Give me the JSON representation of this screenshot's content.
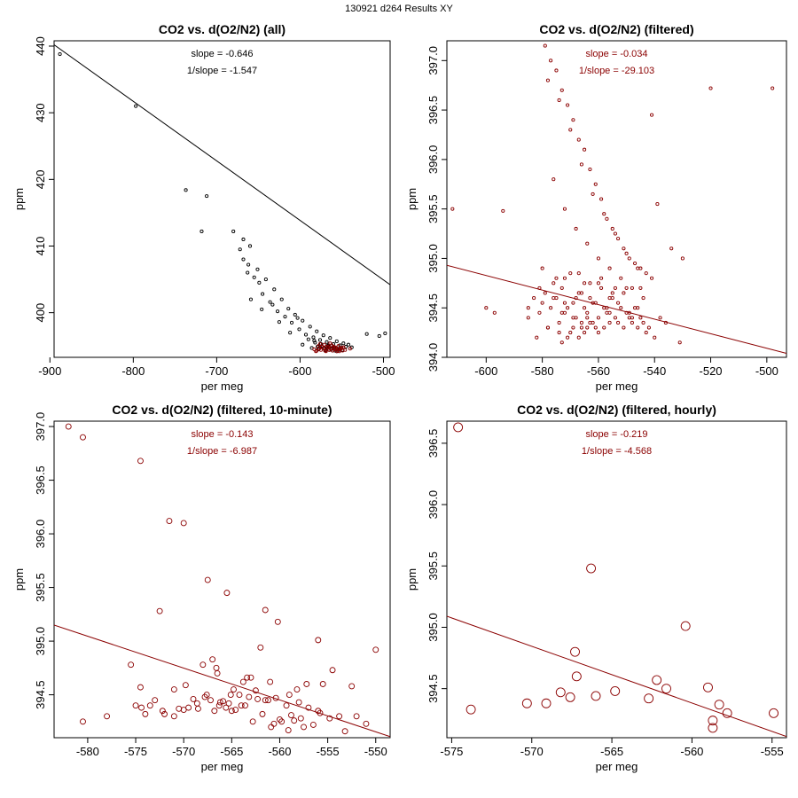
{
  "header": {
    "title": "130921   d264   Results XY"
  },
  "colors": {
    "all": "#000000",
    "filtered": "#8b0000",
    "frame": "#000000"
  },
  "chart_data": [
    {
      "type": "scatter",
      "title": "CO2 vs. d(O2/N2) (all)",
      "xlabel": "per meg",
      "ylabel": "ppm",
      "xlim": [
        -895,
        -492
      ],
      "ylim": [
        393.3,
        440.8
      ],
      "xticks": [
        -900,
        -800,
        -700,
        -600,
        -500
      ],
      "yticks": [
        400,
        410,
        420,
        430,
        440
      ],
      "color_key": "all",
      "marker_r": 1.6,
      "annotations": [
        "slope = -0.646",
        "1/slope = -1.547"
      ],
      "fit_line": {
        "slope": -0.0893,
        "x": [
          -895,
          -492
        ],
        "y": [
          440.2,
          404.2
        ]
      },
      "series": [
        {
          "name": "all",
          "x": [
            -888,
            -797,
            -737,
            -712,
            -718,
            -680,
            -672,
            -668,
            -662,
            -660,
            -655,
            -651,
            -649,
            -645,
            -641,
            -636,
            -631,
            -627,
            -622,
            -618,
            -614,
            -610,
            -606,
            -601,
            -597,
            -593,
            -588,
            -584,
            -580,
            -576,
            -572,
            -568,
            -564,
            -560,
            -556,
            -552,
            -548,
            -545,
            -542,
            -538,
            -520,
            -505,
            -498,
            -668,
            -663,
            -659,
            -646,
            -633,
            -625,
            -612,
            -603,
            -597,
            -590,
            -586,
            -582,
            -578,
            -574,
            -569,
            -565,
            -561,
            -557,
            -553,
            -583,
            -579,
            -575,
            -571,
            -567,
            -563,
            -559,
            -555,
            -551,
            -576,
            -570,
            -566,
            -562,
            -558,
            -554,
            -571,
            -565,
            -560,
            -556,
            -549
          ],
          "y": [
            438.8,
            431.0,
            418.4,
            417.5,
            412.2,
            412.2,
            409.5,
            408.0,
            407.2,
            410.0,
            405.3,
            406.5,
            404.5,
            402.8,
            405.0,
            401.6,
            403.5,
            400.2,
            402.0,
            399.4,
            400.6,
            398.5,
            399.7,
            397.5,
            398.8,
            396.7,
            397.9,
            396.3,
            397.2,
            395.9,
            396.6,
            395.6,
            396.2,
            395.3,
            395.7,
            395.1,
            395.4,
            394.9,
            395.2,
            394.8,
            396.8,
            396.5,
            396.9,
            411.0,
            406.0,
            402.0,
            400.5,
            401.2,
            398.6,
            397.0,
            399.2,
            395.2,
            396.0,
            394.7,
            395.5,
            394.5,
            395.0,
            394.4,
            394.9,
            394.3,
            394.7,
            394.4,
            395.8,
            394.9,
            395.3,
            394.6,
            395.0,
            394.5,
            394.8,
            394.4,
            394.7,
            394.8,
            394.3,
            395.1,
            394.6,
            394.3,
            394.5,
            394.7,
            394.4,
            394.6,
            394.2,
            394.4
          ]
        },
        {
          "name": "filtered",
          "color_key": "filtered",
          "x": [
            -583,
            -580,
            -577,
            -575,
            -572,
            -570,
            -568,
            -566,
            -565,
            -563,
            -561,
            -559,
            -557,
            -555,
            -553,
            -551,
            -549,
            -578,
            -574,
            -571,
            -567,
            -562,
            -558,
            -554,
            -550,
            -581,
            -569,
            -560,
            -552,
            -546,
            -540,
            -576,
            -564,
            -556,
            -548
          ],
          "y": [
            394.5,
            394.3,
            394.6,
            394.4,
            394.7,
            394.3,
            394.5,
            394.8,
            394.4,
            394.6,
            394.3,
            394.5,
            394.7,
            394.4,
            394.2,
            394.6,
            394.3,
            395.0,
            394.9,
            395.2,
            394.9,
            395.1,
            394.8,
            395.0,
            394.7,
            394.2,
            394.2,
            394.9,
            394.5,
            394.4,
            394.6,
            395.3,
            395.4,
            394.2,
            394.8
          ]
        }
      ]
    },
    {
      "type": "scatter",
      "title": "CO2 vs. d(O2/N2) (filtered)",
      "xlabel": "per meg",
      "ylabel": "ppm",
      "xlim": [
        -614,
        -493
      ],
      "ylim": [
        394.0,
        397.2
      ],
      "xticks": [
        -600,
        -580,
        -560,
        -540,
        -520,
        -500
      ],
      "yticks": [
        394.0,
        394.5,
        395.0,
        395.5,
        396.0,
        396.5,
        397.0
      ],
      "color_key": "filtered",
      "marker_r": 1.6,
      "annotations": [
        "slope = -0.034",
        "1/slope = -29.103"
      ],
      "fit_line": {
        "slope": -0.0075,
        "x": [
          -614,
          -493
        ],
        "y": [
          394.93,
          394.04
        ]
      },
      "series": [
        {
          "name": "filtered",
          "x": [
            -612,
            -594,
            -600,
            -597,
            -585,
            -580,
            -578,
            -576,
            -574,
            -573,
            -572,
            -571,
            -570,
            -569,
            -568,
            -567,
            -566,
            -565,
            -564,
            -563,
            -562,
            -561,
            -560,
            -559,
            -558,
            -557,
            -556,
            -555,
            -554,
            -553,
            -552,
            -551,
            -550,
            -549,
            -548,
            -547,
            -546,
            -545,
            -544,
            -543,
            -542,
            -540,
            -538,
            -536,
            -534,
            -531,
            -530,
            -520,
            -498,
            -579,
            -577,
            -575,
            -573,
            -571,
            -569,
            -567,
            -565,
            -563,
            -561,
            -559,
            -557,
            -555,
            -553,
            -551,
            -549,
            -547,
            -545,
            -543,
            -541,
            -578,
            -574,
            -570,
            -566,
            -562,
            -558,
            -554,
            -550,
            -546,
            -576,
            -572,
            -568,
            -564,
            -560,
            -556,
            -552,
            -548,
            -544,
            -580,
            -570,
            -560,
            -550,
            -575,
            -565,
            -555,
            -582,
            -578,
            -574,
            -573,
            -571,
            -569,
            -567,
            -565,
            -564,
            -563,
            -560,
            -585,
            -583,
            -581,
            -579,
            -577,
            -575,
            -572,
            -568,
            -566,
            -562,
            -558,
            -556,
            -553,
            -549,
            -546,
            -541,
            -539,
            -581,
            -576,
            -572,
            -567,
            -563,
            -559,
            -554,
            -551,
            -545,
            -573,
            -569,
            -564,
            -557,
            -548,
            -566,
            -561,
            -556
          ],
          "y": [
            395.5,
            395.48,
            394.5,
            394.45,
            394.4,
            394.55,
            394.3,
            394.6,
            394.35,
            394.7,
            394.45,
            394.5,
            394.25,
            394.55,
            394.4,
            394.65,
            394.3,
            394.5,
            394.45,
            394.6,
            394.35,
            394.55,
            394.4,
            394.7,
            394.3,
            394.5,
            394.45,
            394.6,
            394.4,
            394.35,
            394.5,
            394.3,
            394.45,
            394.4,
            394.35,
            394.5,
            394.3,
            394.4,
            394.35,
            394.25,
            394.3,
            394.2,
            394.4,
            394.35,
            395.1,
            394.15,
            395.0,
            396.72,
            396.72,
            397.15,
            397.0,
            396.9,
            396.7,
            396.55,
            396.4,
            396.2,
            396.1,
            395.9,
            395.75,
            395.6,
            395.4,
            395.3,
            395.2,
            395.1,
            395.0,
            394.95,
            394.9,
            394.85,
            394.8,
            396.8,
            396.6,
            396.3,
            395.95,
            395.65,
            395.45,
            395.25,
            395.05,
            394.9,
            395.8,
            395.5,
            395.3,
            395.15,
            395.0,
            394.9,
            394.8,
            394.7,
            394.6,
            394.9,
            394.85,
            394.75,
            394.7,
            394.8,
            394.75,
            394.65,
            394.2,
            394.3,
            394.25,
            394.15,
            394.2,
            394.3,
            394.2,
            394.25,
            394.3,
            394.35,
            394.25,
            394.5,
            394.6,
            394.45,
            394.65,
            394.5,
            394.6,
            394.55,
            394.6,
            394.65,
            394.55,
            394.5,
            394.6,
            394.55,
            394.45,
            394.5,
            396.45,
            395.55,
            394.7,
            394.75,
            394.8,
            394.85,
            394.75,
            394.8,
            394.7,
            394.65,
            394.7,
            394.45,
            394.4,
            394.4,
            394.45,
            394.4,
            394.35,
            394.3,
            394.35
          ]
        }
      ]
    },
    {
      "type": "scatter",
      "title": "CO2 vs. d(O2/N2) (filtered, 10-minute)",
      "xlabel": "per meg",
      "ylabel": "ppm",
      "xlim": [
        -583.5,
        -548.5
      ],
      "ylim": [
        394.1,
        397.05
      ],
      "xticks": [
        -580,
        -575,
        -570,
        -565,
        -560,
        -555,
        -550
      ],
      "yticks": [
        394.5,
        395.0,
        395.5,
        396.0,
        396.5,
        397.0
      ],
      "color_key": "filtered",
      "marker_r": 3.0,
      "annotations": [
        "slope = -0.143",
        "1/slope = -6.987"
      ],
      "fit_line": {
        "slope": -0.0298,
        "x": [
          -583.5,
          -548.5
        ],
        "y": [
          395.15,
          394.11
        ]
      },
      "series": [
        {
          "name": "10-minute",
          "x": [
            -582,
            -580.5,
            -574.5,
            -571.5,
            -570,
            -572.5,
            -567.5,
            -565.5,
            -561.5,
            -560.2,
            -556,
            -550,
            -575.5,
            -574.5,
            -571,
            -569.8,
            -568,
            -566.5,
            -563.8,
            -562.5,
            -555.5,
            -554.5,
            -552.5,
            -580.5,
            -578,
            -573.5,
            -572.2,
            -571,
            -569.5,
            -568.6,
            -567.2,
            -566.3,
            -565.6,
            -565,
            -564.2,
            -563.2,
            -562.3,
            -561.2,
            -560.4,
            -559.3,
            -558,
            -557,
            -555.8,
            -554.8,
            -553.8,
            -552,
            -551,
            -574,
            -572,
            -570,
            -568.5,
            -567.8,
            -566.8,
            -565.9,
            -565.3,
            -564.6,
            -563.6,
            -562.8,
            -561.8,
            -560.9,
            -560,
            -559.1,
            -558.5,
            -557.5,
            -556.5,
            -556,
            -574.4,
            -570.5,
            -566.2,
            -564,
            -559.8,
            -557.8,
            -569,
            -565.1,
            -563,
            -561,
            -559,
            -567,
            -562,
            -558.2,
            -575,
            -573,
            -567.6,
            -564.8,
            -563.4,
            -560.6,
            -558.8,
            -566.6,
            -561.5,
            -557.2,
            -553.2
          ],
          "y": [
            397.0,
            396.9,
            396.68,
            396.12,
            396.1,
            395.28,
            395.57,
            395.45,
            395.29,
            395.18,
            395.01,
            394.92,
            394.78,
            394.57,
            394.55,
            394.59,
            394.78,
            394.7,
            394.62,
            394.54,
            394.6,
            394.73,
            394.58,
            394.25,
            394.3,
            394.4,
            394.35,
            394.3,
            394.38,
            394.42,
            394.45,
            394.4,
            394.38,
            394.35,
            394.5,
            394.48,
            394.46,
            394.45,
            394.47,
            394.4,
            394.43,
            394.38,
            394.33,
            394.28,
            394.3,
            394.3,
            394.23,
            394.32,
            394.32,
            394.36,
            394.37,
            394.48,
            394.35,
            394.44,
            394.42,
            394.36,
            394.4,
            394.25,
            394.32,
            394.2,
            394.27,
            394.17,
            394.26,
            394.2,
            394.22,
            394.35,
            394.38,
            394.37,
            394.43,
            394.4,
            394.25,
            394.28,
            394.46,
            394.5,
            394.66,
            394.62,
            394.5,
            394.83,
            394.94,
            394.55,
            394.4,
            394.45,
            394.5,
            394.55,
            394.66,
            394.23,
            394.31,
            394.75,
            394.45,
            394.6,
            394.16
          ]
        }
      ]
    },
    {
      "type": "scatter",
      "title": "CO2 vs. d(O2/N2) (filtered, hourly)",
      "xlabel": "per meg",
      "ylabel": "ppm",
      "xlim": [
        -575.3,
        -554.1
      ],
      "ylim": [
        394.1,
        396.68
      ],
      "xticks": [
        -575,
        -570,
        -565,
        -560,
        -555
      ],
      "yticks": [
        394.5,
        395.0,
        395.5,
        396.0,
        396.5
      ],
      "color_key": "filtered",
      "marker_r": 5.0,
      "annotations": [
        "slope = -0.219",
        "1/slope = -4.568"
      ],
      "fit_line": {
        "slope": -0.0464,
        "x": [
          -575.3,
          -554.1
        ],
        "y": [
          395.09,
          394.11
        ]
      },
      "series": [
        {
          "name": "hourly",
          "x": [
            -574.6,
            -573.8,
            -570.3,
            -569.1,
            -568.2,
            -567.6,
            -567.3,
            -567.2,
            -566.3,
            -566.0,
            -564.8,
            -562.7,
            -562.2,
            -561.6,
            -560.4,
            -559.0,
            -558.7,
            -558.7,
            -558.3,
            -557.8,
            -554.9
          ],
          "y": [
            396.63,
            394.33,
            394.38,
            394.38,
            394.47,
            394.43,
            394.8,
            394.6,
            395.48,
            394.44,
            394.48,
            394.42,
            394.57,
            394.5,
            395.01,
            394.51,
            394.24,
            394.18,
            394.37,
            394.3,
            394.3
          ]
        }
      ]
    }
  ]
}
